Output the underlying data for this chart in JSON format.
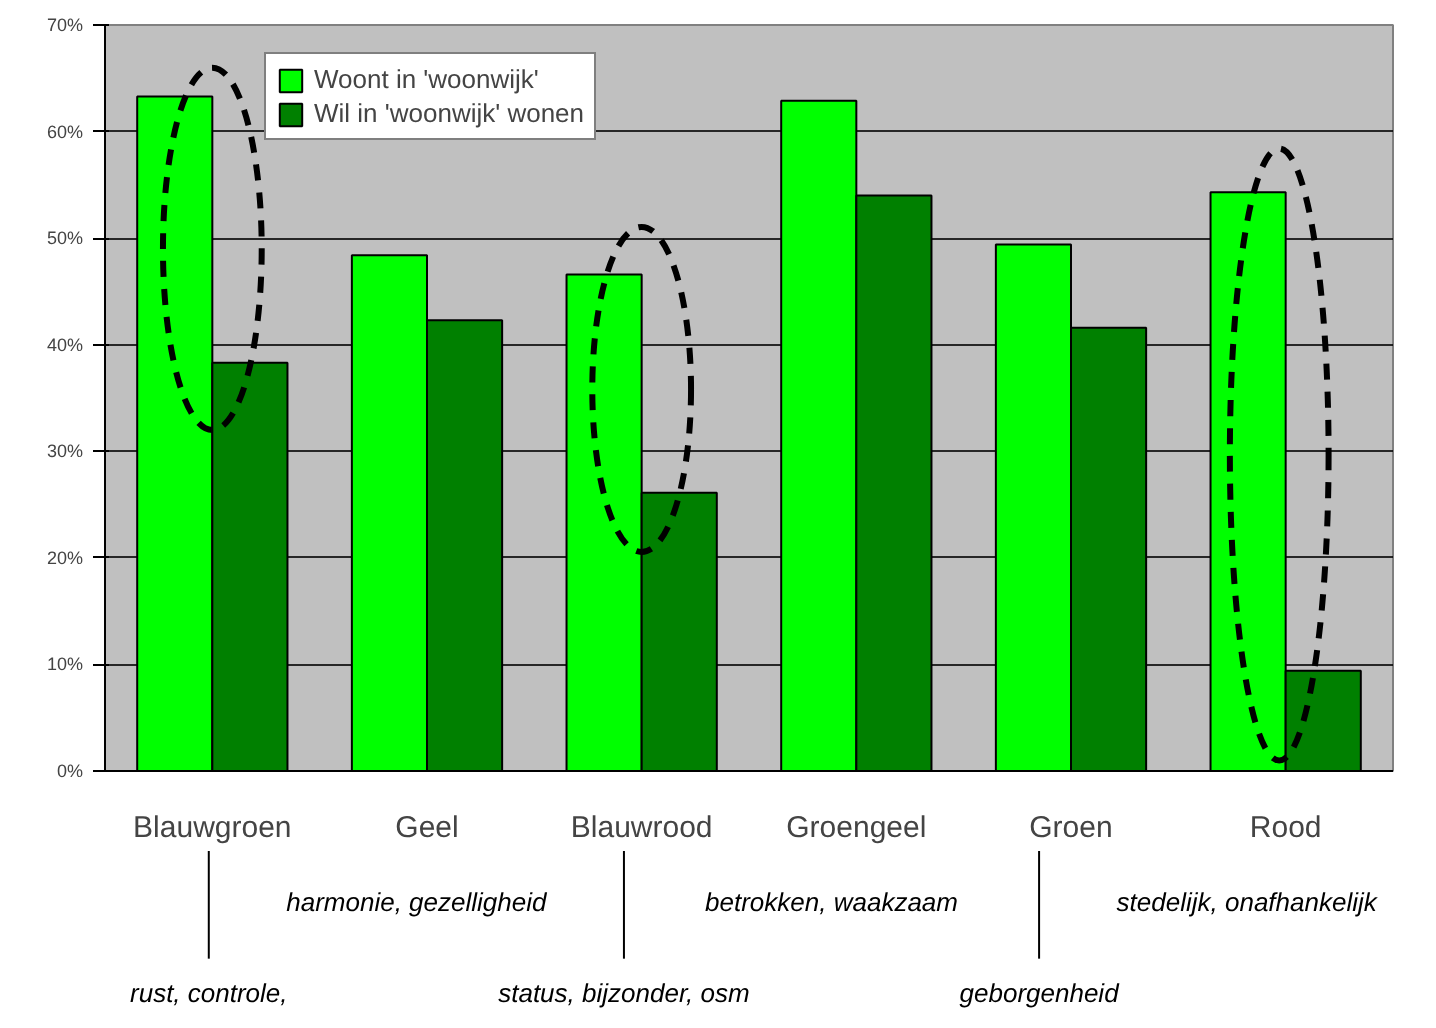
{
  "chart_data": {
    "type": "bar",
    "categories": [
      "Blauwgroen",
      "Geel",
      "Blauwrood",
      "Groengeel",
      "Groen",
      "Rood"
    ],
    "series": [
      {
        "name": "Woont in 'woonwijk'",
        "color": "#00ff00",
        "values": [
          63.3,
          48.4,
          46.6,
          62.9,
          49.4,
          54.3
        ]
      },
      {
        "name": "Wil in 'woonwijk' wonen",
        "color": "#008000",
        "values": [
          38.3,
          42.3,
          26.1,
          54.0,
          41.6,
          9.4
        ]
      }
    ],
    "ylim": [
      0,
      70
    ],
    "yticks": [
      {
        "value": 0,
        "label": "0%"
      },
      {
        "value": 10,
        "label": "10%"
      },
      {
        "value": 20,
        "label": "20%"
      },
      {
        "value": 30,
        "label": "30%"
      },
      {
        "value": 40,
        "label": "40%"
      },
      {
        "value": 50,
        "label": "50%"
      },
      {
        "value": 60,
        "label": "60%"
      },
      {
        "value": 70,
        "label": "70%"
      }
    ],
    "grid": "y",
    "legend": "top left",
    "annotations": [
      "rust, controle,",
      "harmonie, gezelligheid",
      "status, bijzonder, osm",
      "betrokken, waakzaam",
      "geborgenheid",
      "stedelijk, onafhankelijk"
    ]
  }
}
